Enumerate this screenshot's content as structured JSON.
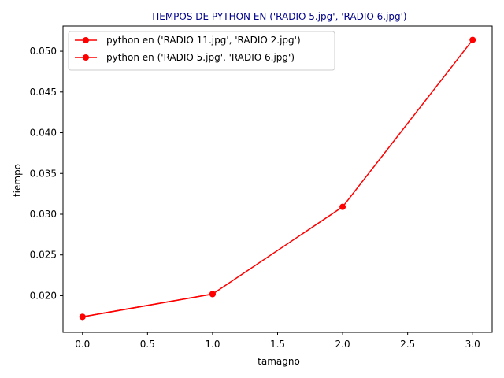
{
  "colors": {
    "title": "#00008b",
    "series": "#ff0000",
    "axis": "#000000",
    "legend_border": "#cccccc"
  },
  "chart_data": {
    "type": "line",
    "title": "TIEMPOS DE PYTHON EN ('RADIO 5.jpg', 'RADIO 6.jpg')",
    "xlabel": "tamagno",
    "ylabel": "tiempo",
    "xlim": [
      -0.15,
      3.15
    ],
    "ylim": [
      0.0155,
      0.0531
    ],
    "xticks": [
      0.0,
      0.5,
      1.0,
      1.5,
      2.0,
      2.5,
      3.0
    ],
    "xtick_labels": [
      "0.0",
      "0.5",
      "1.0",
      "1.5",
      "2.0",
      "2.5",
      "3.0"
    ],
    "yticks": [
      0.02,
      0.025,
      0.03,
      0.035,
      0.04,
      0.045,
      0.05
    ],
    "ytick_labels": [
      "0.020",
      "0.025",
      "0.030",
      "0.035",
      "0.040",
      "0.045",
      "0.050"
    ],
    "grid": false,
    "legend_position": "top-left",
    "series": [
      {
        "name": "python en ('RADIO 11.jpg', 'RADIO 2.jpg')",
        "x": [
          0,
          1
        ],
        "values": [
          0.0174,
          0.0202
        ]
      },
      {
        "name": "python en ('RADIO 5.jpg', 'RADIO 6.jpg')",
        "x": [
          0,
          1,
          2,
          3
        ],
        "values": [
          0.0174,
          0.0202,
          0.0309,
          0.0514
        ]
      }
    ]
  }
}
